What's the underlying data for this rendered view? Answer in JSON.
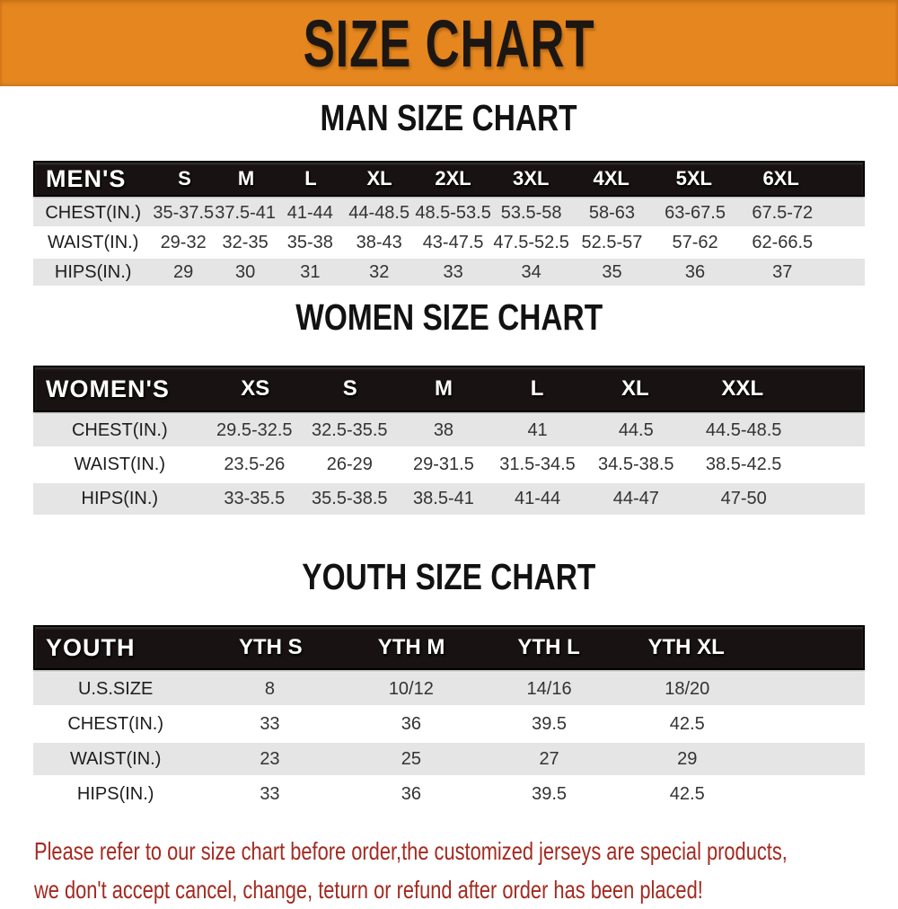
{
  "banner": {
    "title": "SIZE CHART"
  },
  "sections": [
    {
      "id": "men",
      "heading": "MAN SIZE CHART",
      "table": {
        "label": "MEN'S",
        "columns": [
          "S",
          "M",
          "L",
          "XL",
          "2XL",
          "3XL",
          "4XL",
          "5XL",
          "6XL"
        ],
        "rows": [
          {
            "label": "CHEST(IN.)",
            "values": [
              "35-37.5",
              "37.5-41",
              "41-44",
              "44-48.5",
              "48.5-53.5",
              "53.5-58",
              "58-63",
              "63-67.5",
              "67.5-72"
            ]
          },
          {
            "label": "WAIST(IN.)",
            "values": [
              "29-32",
              "32-35",
              "35-38",
              "38-43",
              "43-47.5",
              "47.5-52.5",
              "52.5-57",
              "57-62",
              "62-66.5"
            ]
          },
          {
            "label": "HIPS(IN.)",
            "values": [
              "29",
              "30",
              "31",
              "32",
              "33",
              "34",
              "35",
              "36",
              "37"
            ]
          }
        ]
      }
    },
    {
      "id": "women",
      "heading": "WOMEN SIZE CHART",
      "table": {
        "label": "WOMEN'S",
        "columns": [
          "XS",
          "S",
          "M",
          "L",
          "XL",
          "XXL"
        ],
        "rows": [
          {
            "label": "CHEST(IN.)",
            "values": [
              "29.5-32.5",
              "32.5-35.5",
              "38",
              "41",
              "44.5",
              "44.5-48.5"
            ]
          },
          {
            "label": "WAIST(IN.)",
            "values": [
              "23.5-26",
              "26-29",
              "29-31.5",
              "31.5-34.5",
              "34.5-38.5",
              "38.5-42.5"
            ]
          },
          {
            "label": "HIPS(IN.)",
            "values": [
              "33-35.5",
              "35.5-38.5",
              "38.5-41",
              "41-44",
              "44-47",
              "47-50"
            ]
          }
        ]
      }
    },
    {
      "id": "youth",
      "heading": "YOUTH SIZE CHART",
      "table": {
        "label": "YOUTH",
        "columns": [
          "YTH S",
          "YTH M",
          "YTH L",
          "YTH XL"
        ],
        "rows": [
          {
            "label": "U.S.SIZE",
            "values": [
              "8",
              "10/12",
              "14/16",
              "18/20"
            ]
          },
          {
            "label": "CHEST(IN.)",
            "values": [
              "33",
              "36",
              "39.5",
              "42.5"
            ]
          },
          {
            "label": "WAIST(IN.)",
            "values": [
              "23",
              "25",
              "27",
              "29"
            ]
          },
          {
            "label": "HIPS(IN.)",
            "values": [
              "33",
              "36",
              "39.5",
              "42.5"
            ]
          }
        ]
      }
    }
  ],
  "footer": {
    "lines": [
      "Please refer to our size chart before order,the customized jerseys are special products,",
      "we don't accept cancel, change, teturn or refund after order has been placed!"
    ]
  },
  "colors": {
    "banner_bg": "#E5861F",
    "header_bg": "#181212",
    "row_stripe": "#E5E5E5",
    "footer_text": "#A32A20"
  }
}
